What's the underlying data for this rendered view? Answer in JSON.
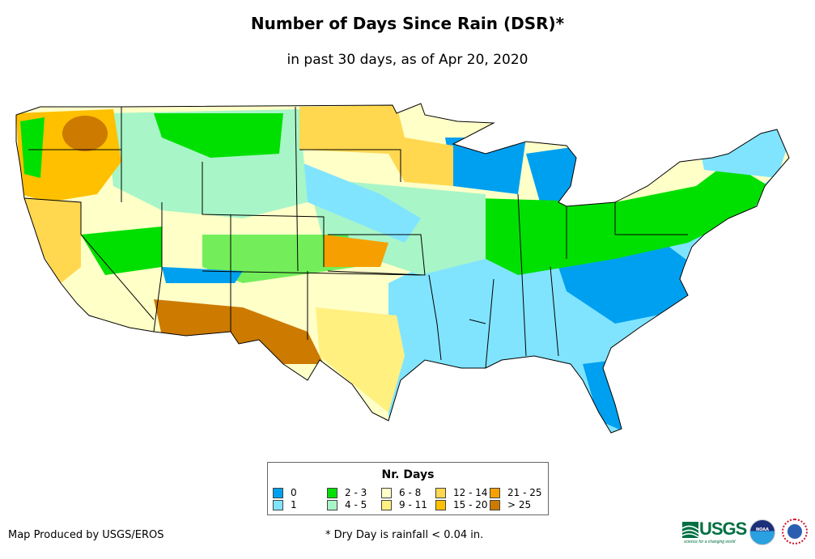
{
  "header": {
    "title": "Number of Days Since Rain (DSR)*",
    "subtitle": "in past 30 days, as of Apr 20, 2020"
  },
  "legend": {
    "title": "Nr. Days",
    "items": [
      {
        "label": "0",
        "color": "#00a0f0"
      },
      {
        "label": "1",
        "color": "#80e4ff"
      },
      {
        "label": "2 - 3",
        "color": "#00e000"
      },
      {
        "label": "4 - 5",
        "color": "#a8f5c8"
      },
      {
        "label": "6 - 8",
        "color": "#ffffc8"
      },
      {
        "label": "9 - 11",
        "color": "#fff080"
      },
      {
        "label": "12 - 14",
        "color": "#ffd850"
      },
      {
        "label": "15 - 20",
        "color": "#ffc000"
      },
      {
        "label": "21 - 25",
        "color": "#f5a000"
      },
      {
        "label": "> 25",
        "color": "#cc7a00"
      }
    ]
  },
  "footer": {
    "credit": "Map Produced by USGS/EROS",
    "note": "* Dry Day is rainfall < 0.04 in."
  },
  "logos": {
    "usgs": "USGS",
    "usgs_tagline": "science for a changing world",
    "noaa": "NOAA",
    "nws": "National Weather Service"
  }
}
